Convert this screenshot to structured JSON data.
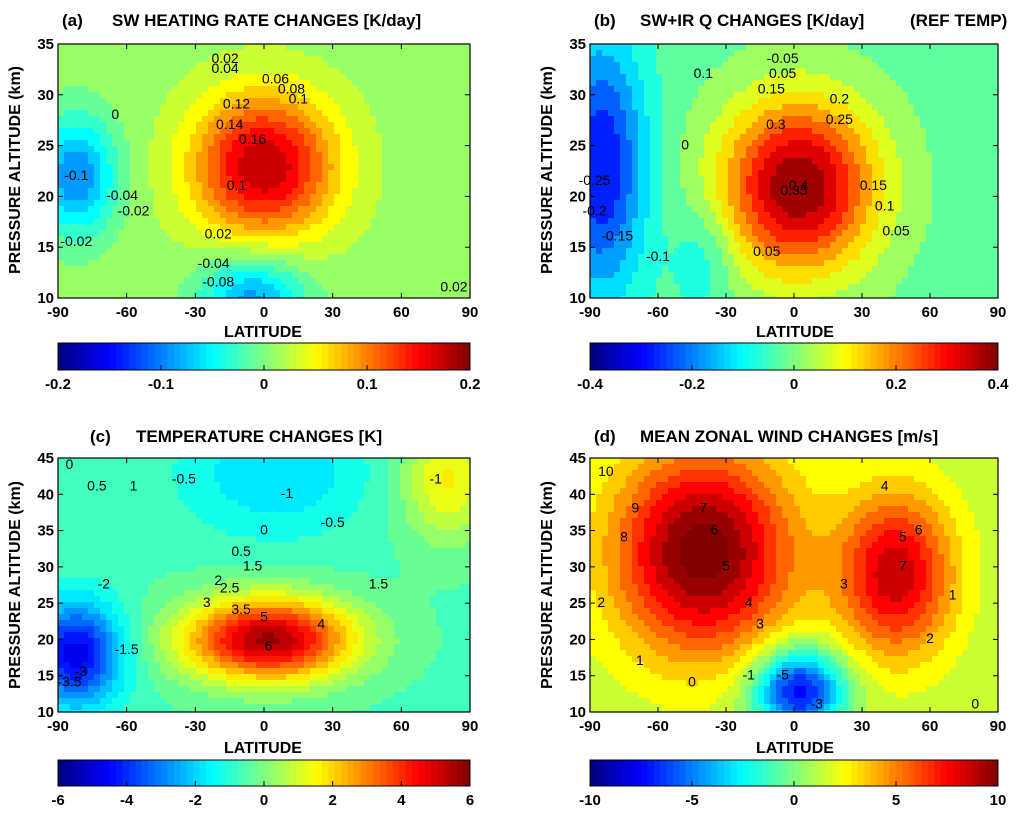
{
  "panels": [
    {
      "tag": "(a)",
      "title": "SW HEATING RATE CHANGES [K/day]",
      "note": "",
      "xlabel": "LATITUDE",
      "ylabel": "PRESSURE ALTITUDE  (km)",
      "yticks": [
        "10",
        "15",
        "20",
        "25",
        "30",
        "35"
      ],
      "xticks": [
        "-90",
        "-60",
        "-30",
        "0",
        "30",
        "60",
        "90"
      ],
      "cbar_ticks": [
        "-0.2",
        "-0.1",
        "0",
        "0.1",
        "0.2"
      ],
      "contour_labels": [
        "0.02",
        "0.04",
        "0.06",
        "0.08",
        "0.1",
        "0.12",
        "0.14",
        "0.16",
        "0",
        "-0.1",
        "-0.04",
        "-0.02",
        "0.02",
        "-0.02",
        "-0.04",
        "-0.08",
        "0.02",
        "0.1"
      ]
    },
    {
      "tag": "(b)",
      "title": "SW+IR Q CHANGES [K/day]",
      "note": "(REF TEMP)",
      "xlabel": "LATITUDE",
      "ylabel": "PRESSURE ALTITUDE  (km)",
      "yticks": [
        "10",
        "15",
        "20",
        "25",
        "30",
        "35"
      ],
      "xticks": [
        "-90",
        "-60",
        "-30",
        "0",
        "30",
        "60",
        "90"
      ],
      "cbar_ticks": [
        "-0.4",
        "-0.2",
        "0",
        "0.2",
        "0.4"
      ],
      "contour_labels": [
        "-0.05",
        "0.05",
        "0.1",
        "0.15",
        "0.2",
        "0.25",
        "0.3",
        "0.35",
        "0.4",
        "-0.25",
        "-0.2",
        "-0.15",
        "-0.1",
        "0",
        "0.15",
        "0.1",
        "0.05",
        "0.05"
      ]
    },
    {
      "tag": "(c)",
      "title": "TEMPERATURE CHANGES [K]",
      "note": "",
      "xlabel": "LATITUDE",
      "ylabel": "PRESSURE ALTITUDE  (km)",
      "yticks": [
        "10",
        "15",
        "20",
        "25",
        "30",
        "35",
        "40",
        "45"
      ],
      "xticks": [
        "-90",
        "-60",
        "-30",
        "0",
        "30",
        "60",
        "90"
      ],
      "cbar_ticks": [
        "-6",
        "-4",
        "-2",
        "0",
        "2",
        "4",
        "6"
      ],
      "contour_labels": [
        "0",
        "0.5",
        "1",
        "-0.5",
        "-1",
        "-1",
        "-0.5",
        "0",
        "0.5",
        "1.5",
        "2",
        "2.5",
        "3",
        "3.5",
        "4",
        "5",
        "6",
        "-2",
        "-3",
        "-3.5",
        "-1.5",
        "1.5"
      ]
    },
    {
      "tag": "(d)",
      "title": "MEAN ZONAL WIND CHANGES [m/s]",
      "note": "",
      "xlabel": "LATITUDE",
      "ylabel": "PRESSURE ALTITUDE  (km)",
      "yticks": [
        "10",
        "15",
        "20",
        "25",
        "30",
        "35",
        "40",
        "45"
      ],
      "xticks": [
        "-90",
        "-60",
        "-30",
        "0",
        "30",
        "60",
        "90"
      ],
      "cbar_ticks": [
        "-10",
        "-5",
        "0",
        "5",
        "10"
      ],
      "contour_labels": [
        "10",
        "9",
        "8",
        "7",
        "6",
        "5",
        "4",
        "3",
        "2",
        "1",
        "0",
        "-1",
        "-3",
        "-5",
        "3",
        "4",
        "5",
        "6",
        "7",
        "2",
        "1",
        "0"
      ]
    }
  ],
  "chart_data": [
    {
      "type": "heatmap",
      "title": "SW HEATING RATE CHANGES [K/day]",
      "xlabel": "LATITUDE",
      "ylabel": "PRESSURE ALTITUDE  (km)",
      "xlim": [
        -90,
        90
      ],
      "ylim": [
        10,
        35
      ],
      "clim": [
        -0.2,
        0.2
      ],
      "colormap": "jet",
      "contour_interval": 0.02,
      "features": [
        {
          "lat": 0,
          "alt": 23,
          "value": 0.17,
          "spread_lat": 22,
          "spread_alt": 5
        },
        {
          "lat": -82,
          "alt": 22,
          "value": -0.11,
          "spread_lat": 12,
          "spread_alt": 4
        },
        {
          "lat": -5,
          "alt": 10,
          "value": -0.1,
          "spread_lat": 16,
          "spread_alt": 3
        }
      ],
      "background": 0.01
    },
    {
      "type": "heatmap",
      "title": "SW+IR Q CHANGES [K/day]",
      "xlabel": "LATITUDE",
      "ylabel": "PRESSURE ALTITUDE  (km)",
      "xlim": [
        -90,
        90
      ],
      "ylim": [
        10,
        35
      ],
      "clim": [
        -0.4,
        0.4
      ],
      "colormap": "jet",
      "contour_interval": 0.05,
      "features": [
        {
          "lat": 2,
          "alt": 21,
          "value": 0.42,
          "spread_lat": 24,
          "spread_alt": 6
        },
        {
          "lat": -85,
          "alt": 23,
          "value": -0.28,
          "spread_lat": 14,
          "spread_alt": 9
        },
        {
          "lat": -40,
          "alt": 14,
          "value": -0.08,
          "spread_lat": 10,
          "spread_alt": 4
        }
      ],
      "background": -0.02
    },
    {
      "type": "heatmap",
      "title": "TEMPERATURE CHANGES [K]",
      "xlabel": "LATITUDE",
      "ylabel": "PRESSURE ALTITUDE  (km)",
      "xlim": [
        -90,
        90
      ],
      "ylim": [
        10,
        45
      ],
      "clim": [
        -6,
        6
      ],
      "colormap": "jet",
      "contour_interval": 0.5,
      "features": [
        {
          "lat": 2,
          "alt": 20,
          "value": 6.2,
          "spread_lat": 26,
          "spread_alt": 4
        },
        {
          "lat": -82,
          "alt": 18,
          "value": -4.2,
          "spread_lat": 14,
          "spread_alt": 5
        },
        {
          "lat": 5,
          "alt": 43,
          "value": -1.4,
          "spread_lat": 28,
          "spread_alt": 6
        },
        {
          "lat": 80,
          "alt": 42,
          "value": 2.2,
          "spread_lat": 14,
          "spread_alt": 6
        }
      ],
      "background": -0.6
    },
    {
      "type": "heatmap",
      "title": "MEAN ZONAL WIND CHANGES [m/s]",
      "xlabel": "LATITUDE",
      "ylabel": "PRESSURE ALTITUDE  (km)",
      "xlim": [
        -90,
        90
      ],
      "ylim": [
        10,
        45
      ],
      "clim": [
        -10,
        10
      ],
      "colormap": "jet",
      "contour_interval": 1,
      "features": [
        {
          "lat": -40,
          "alt": 32,
          "value": 9.5,
          "spread_lat": 28,
          "spread_alt": 10
        },
        {
          "lat": 45,
          "alt": 29,
          "value": 7.5,
          "spread_lat": 18,
          "spread_alt": 8
        },
        {
          "lat": 2,
          "alt": 13,
          "value": -9,
          "spread_lat": 14,
          "spread_alt": 4
        }
      ],
      "background": 1.2
    }
  ]
}
